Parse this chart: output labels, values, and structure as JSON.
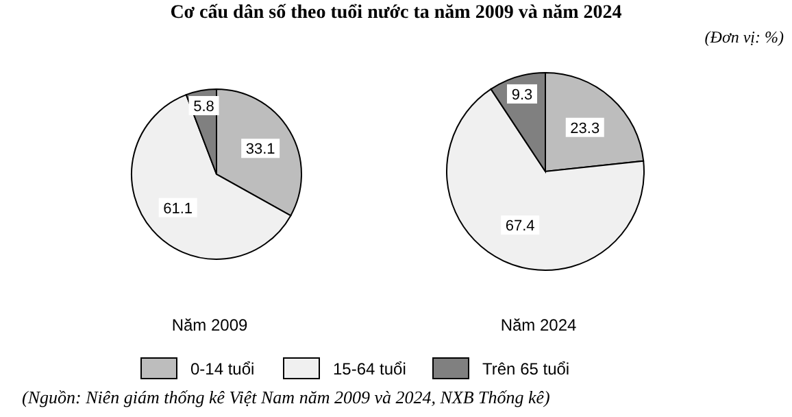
{
  "chart_data": [
    {
      "type": "pie",
      "title": "Cơ cấu dân số theo tuổi nước ta năm 2009 và năm 2024",
      "subtitle": "(Đơn vị: %)",
      "xlabel": "Năm 2009",
      "categories": [
        "0-14 tuổi",
        "15-64 tuổi",
        "Trên 65 tuổi"
      ],
      "values": [
        33.1,
        61.1,
        5.8
      ],
      "colors": [
        "#bdbdbd",
        "#f0f0f0",
        "#808080"
      ],
      "data_labels": true,
      "legend": "bottom",
      "annotations": [
        "(Nguồn: Niên giám thống kê Việt Nam năm 2009 và 2024, NXB Thống kê)"
      ]
    },
    {
      "type": "pie",
      "xlabel": "Năm 2024",
      "categories": [
        null,
        null,
        null
      ],
      "values": [
        23.3,
        67.4,
        9.3
      ],
      "colors": [
        "#bdbdbd",
        "#f0f0f0",
        "#808080"
      ],
      "data_labels": true
    }
  ]
}
